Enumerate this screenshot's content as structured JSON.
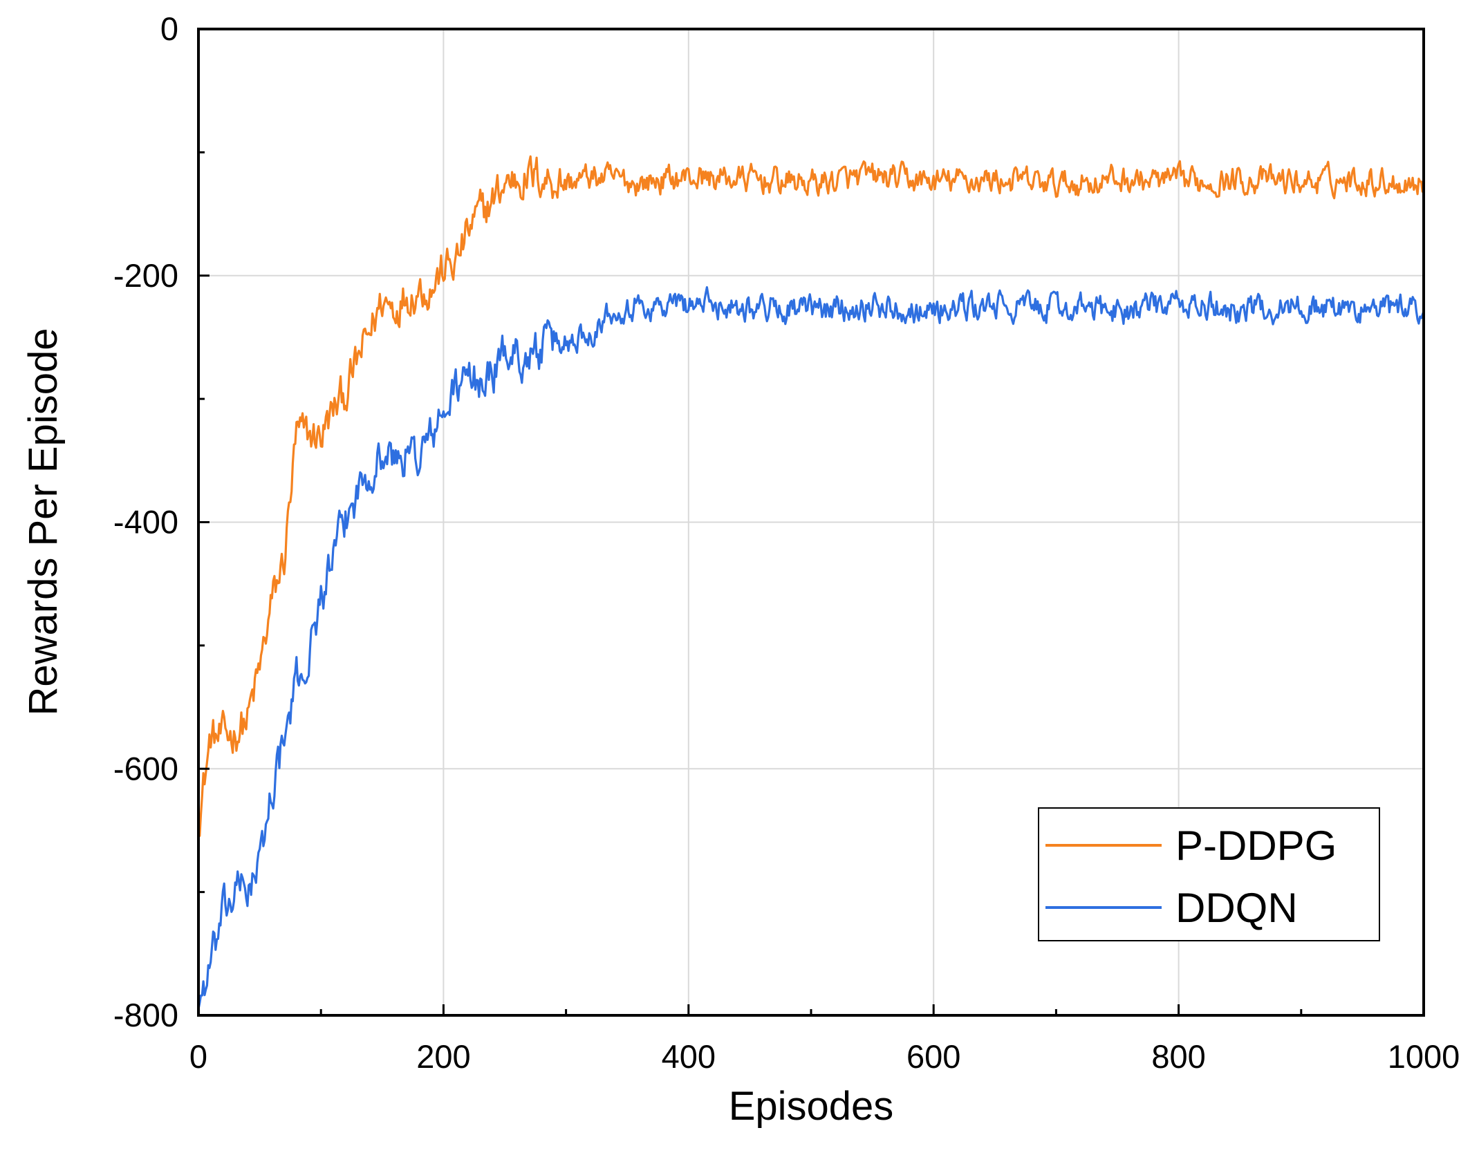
{
  "chart_data": {
    "type": "line",
    "title": "",
    "xlabel": "Episodes",
    "ylabel": "Rewards Per Episode",
    "xlim": [
      0,
      1000
    ],
    "ylim": [
      -800,
      0
    ],
    "xticks": [
      "0",
      "200",
      "400",
      "600",
      "800",
      "1000"
    ],
    "yticks": [
      "0",
      "-200",
      "-400",
      "-600",
      "-800"
    ],
    "grid": true,
    "legend_position": "bottom-right",
    "series": [
      {
        "name": "P-DDPG",
        "color": "#F5821F",
        "x": [
          0,
          10,
          20,
          30,
          40,
          50,
          60,
          70,
          80,
          90,
          100,
          110,
          120,
          130,
          140,
          150,
          160,
          170,
          180,
          190,
          200,
          210,
          220,
          230,
          240,
          250,
          260,
          280,
          300,
          320,
          340,
          360,
          380,
          400,
          450,
          500,
          550,
          600,
          650,
          700,
          750,
          800,
          850,
          900,
          950,
          1000
        ],
        "values": [
          -640,
          -575,
          -575,
          -570,
          -560,
          -520,
          -465,
          -430,
          -330,
          -330,
          -330,
          -310,
          -295,
          -270,
          -245,
          -220,
          -225,
          -215,
          -210,
          -210,
          -195,
          -190,
          -165,
          -150,
          -140,
          -125,
          -120,
          -120,
          -125,
          -120,
          -122,
          -125,
          -122,
          -120,
          -122,
          -125,
          -120,
          -124,
          -122,
          -126,
          -122,
          -124,
          -122,
          -124,
          -122,
          -125
        ]
      },
      {
        "name": "DDQN",
        "color": "#2E6FE0",
        "x": [
          0,
          10,
          20,
          30,
          40,
          50,
          60,
          70,
          80,
          90,
          100,
          110,
          120,
          130,
          140,
          150,
          160,
          170,
          180,
          190,
          200,
          210,
          220,
          230,
          240,
          250,
          260,
          270,
          280,
          290,
          300,
          320,
          340,
          360,
          380,
          400,
          450,
          500,
          550,
          600,
          650,
          700,
          750,
          800,
          850,
          900,
          950,
          1000
        ],
        "values": [
          -790,
          -760,
          -720,
          -700,
          -695,
          -680,
          -615,
          -580,
          -530,
          -510,
          -460,
          -430,
          -400,
          -375,
          -355,
          -345,
          -350,
          -345,
          -345,
          -330,
          -315,
          -290,
          -285,
          -285,
          -280,
          -260,
          -265,
          -265,
          -260,
          -255,
          -255,
          -245,
          -225,
          -225,
          -225,
          -222,
          -225,
          -228,
          -224,
          -228,
          -225,
          -226,
          -228,
          -224,
          -228,
          -225,
          -228,
          -226
        ]
      }
    ]
  }
}
